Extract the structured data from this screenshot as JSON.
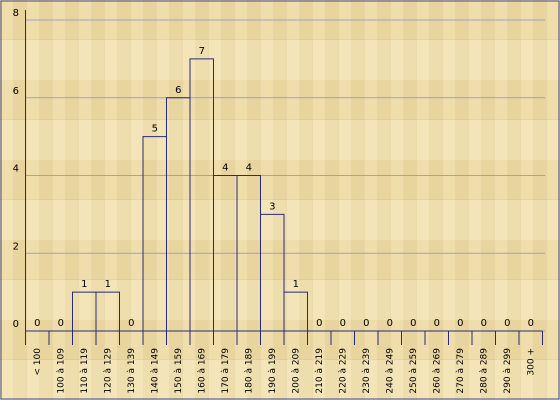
{
  "chart_data": {
    "type": "bar",
    "categories": [
      "< 100",
      "100 à 109",
      "110 à 119",
      "120 à 129",
      "130 à 139",
      "140 à 149",
      "150 à 159",
      "160 à 169",
      "170 à 179",
      "180 à 189",
      "190 à 199",
      "200 à 209",
      "210 à 219",
      "220 à 229",
      "230 à 239",
      "240 à 249",
      "250 à 259",
      "260 à 269",
      "270 à 279",
      "280 à 289",
      "290 à 299",
      "300 +"
    ],
    "values": [
      0,
      0,
      1,
      1,
      0,
      5,
      6,
      7,
      4,
      4,
      3,
      1,
      0,
      0,
      0,
      0,
      0,
      0,
      0,
      0,
      0,
      0
    ],
    "color": "#2a2a7a",
    "ylim": [
      0,
      8
    ],
    "yticks": [
      0,
      2,
      4,
      6,
      8
    ],
    "grid": true
  }
}
